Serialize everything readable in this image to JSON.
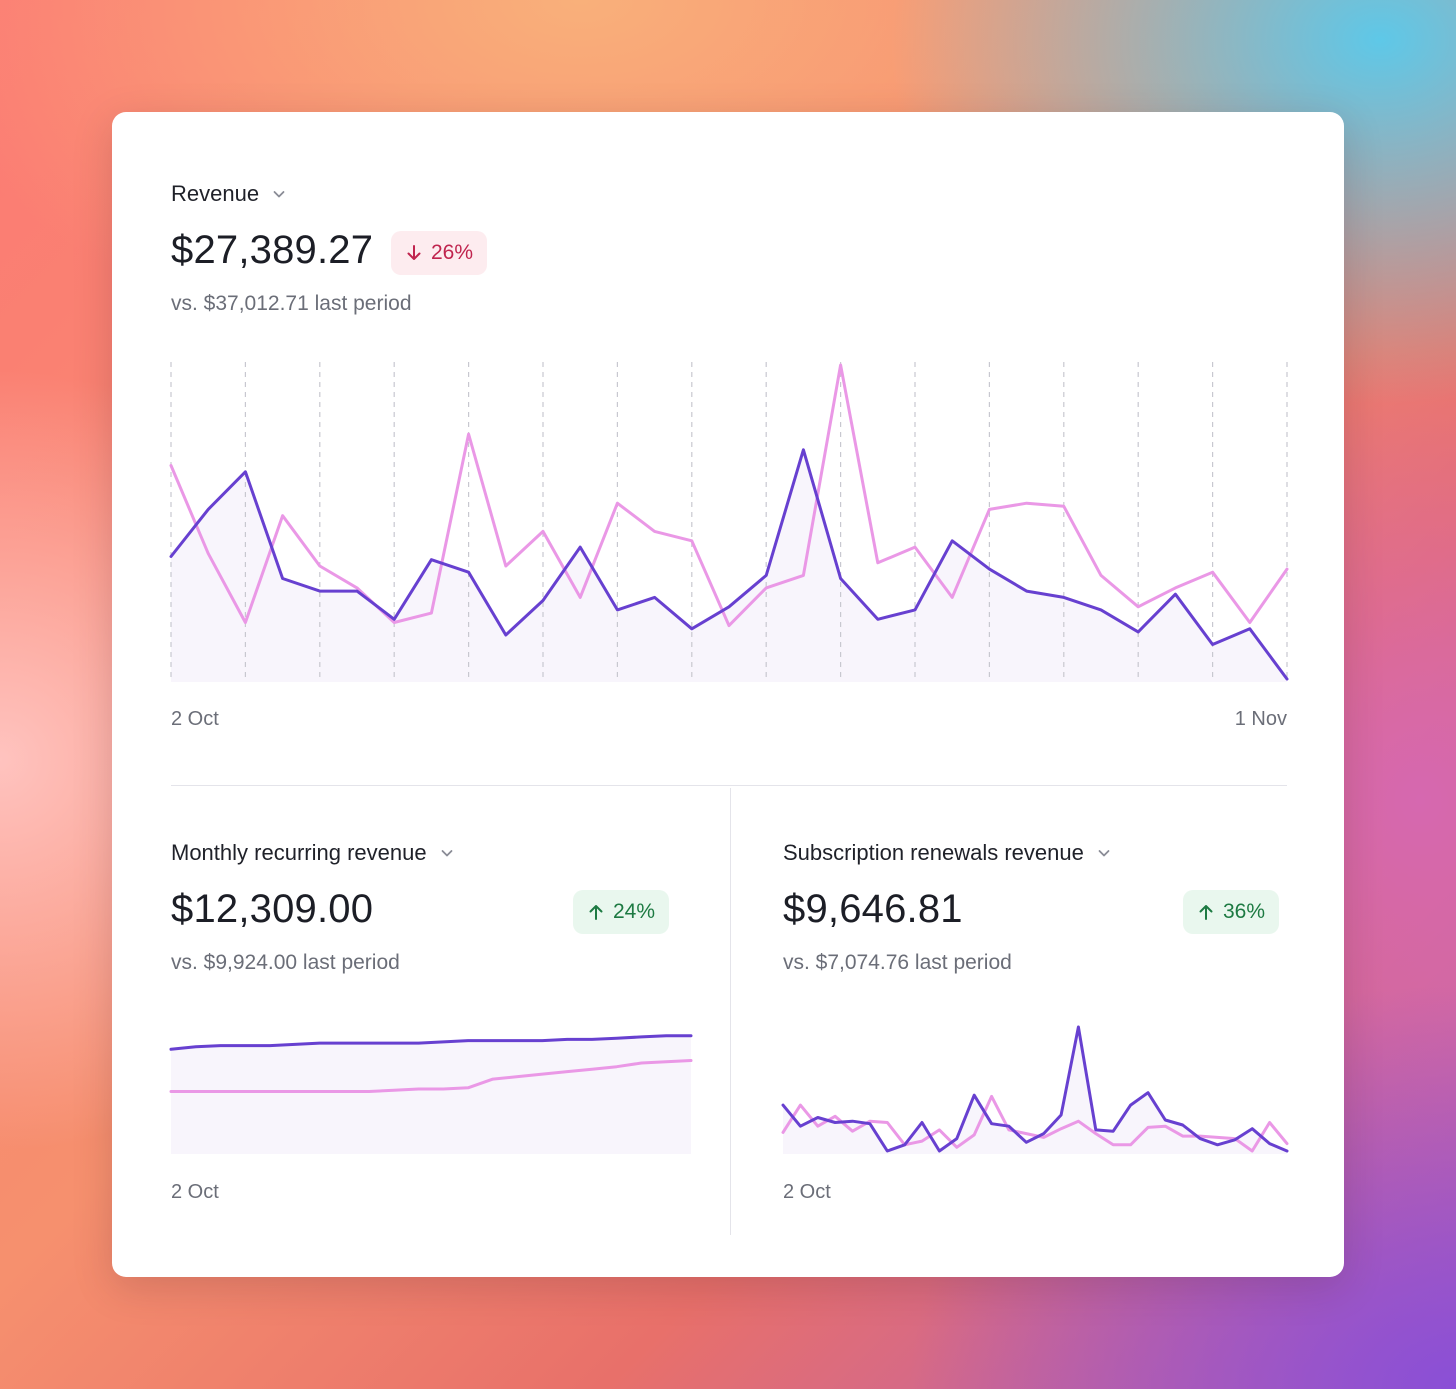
{
  "colors": {
    "current": "#6740d0",
    "previous": "#ea98e6",
    "fill": "#f8f5fc",
    "gridline": "#c8c8d0"
  },
  "revenue": {
    "label": "Revenue",
    "value": "$27,389.27",
    "change": "26%",
    "change_direction": "down",
    "comparison": "vs. $37,012.71 last period",
    "x_start": "2 Oct",
    "x_end": "1 Nov"
  },
  "mrr": {
    "label": "Monthly recurring revenue",
    "value": "$12,309.00",
    "change": "24%",
    "change_direction": "up",
    "comparison": "vs. $9,924.00 last period",
    "x_start": "2 Oct"
  },
  "renewals": {
    "label": "Subscription renewals revenue",
    "value": "$9,646.81",
    "change": "36%",
    "change_direction": "up",
    "comparison": "vs. $7,074.76 last period",
    "x_start": "2 Oct"
  },
  "chart_data": [
    {
      "type": "area",
      "grid": "vertical dashed",
      "x_labels": [
        "2 Oct",
        "1 Nov"
      ],
      "ylim": [
        0,
        100
      ],
      "series": [
        {
          "values": [
            39,
            54,
            66,
            32,
            28,
            28,
            19,
            38,
            34,
            14,
            25,
            42,
            22,
            26,
            16,
            23,
            33,
            73,
            32,
            19,
            22,
            44,
            35,
            28,
            26,
            22,
            15,
            27,
            11,
            16,
            0
          ]
        },
        {
          "values": [
            68,
            40,
            18,
            52,
            36,
            29,
            18,
            21,
            78,
            36,
            47,
            26,
            56,
            47,
            44,
            17,
            29,
            33,
            100,
            37,
            42,
            26,
            54,
            56,
            55,
            33,
            23,
            29,
            34,
            18,
            35
          ]
        }
      ]
    },
    {
      "type": "area",
      "grid": "none",
      "x_labels": [
        "2 Oct"
      ],
      "ylim": [
        0,
        100
      ],
      "series": [
        {
          "values": [
            82,
            84,
            85,
            85,
            85,
            86,
            87,
            87,
            87,
            87,
            87,
            88,
            89,
            89,
            89,
            89,
            90,
            90,
            91,
            92,
            93,
            93
          ]
        },
        {
          "values": [
            48,
            48,
            48,
            48,
            48,
            48,
            48,
            48,
            48,
            49,
            50,
            50,
            51,
            58,
            60,
            62,
            64,
            66,
            68,
            71,
            72,
            73
          ]
        }
      ]
    },
    {
      "type": "area",
      "grid": "none",
      "x_labels": [
        "2 Oct"
      ],
      "ylim": [
        0,
        100
      ],
      "series": [
        {
          "values": [
            37,
            20,
            27,
            23,
            24,
            22,
            0,
            5,
            23,
            0,
            10,
            45,
            22,
            20,
            7,
            14,
            29,
            100,
            17,
            16,
            37,
            47,
            25,
            21,
            10,
            5,
            9,
            18,
            6,
            0
          ]
        },
        {
          "values": [
            15,
            37,
            20,
            28,
            16,
            24,
            23,
            5,
            8,
            17,
            3,
            13,
            44,
            17,
            14,
            11,
            18,
            24,
            14,
            5,
            5,
            19,
            20,
            12,
            12,
            11,
            10,
            0,
            23,
            6
          ]
        }
      ]
    }
  ]
}
